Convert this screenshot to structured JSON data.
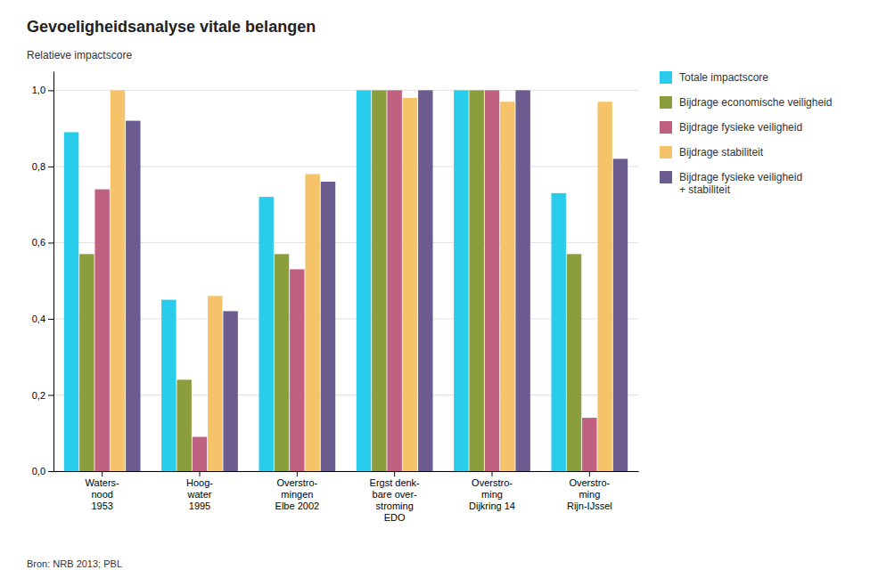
{
  "chart_data": {
    "type": "bar",
    "title": "Gevoeligheidsanalyse vitale belangen",
    "ylabel": "Relatieve impactscore",
    "annotations": [
      "Bron: NRB 2013; PBL"
    ],
    "categories": [
      "Waters-\nnood\n1953",
      "Hoog-\nwater\n1995",
      "Overstro-\nmingen\nElbe 2002",
      "Ergst denk-\nbare over-\nstroming\nEDO",
      "Overstro-\nming\nDijkring 14",
      "Overstro-\nming\nRijn-IJssel"
    ],
    "series": [
      {
        "name": "Totale impactscore",
        "color": "#29CCEA",
        "values": [
          0.89,
          0.45,
          0.72,
          1.0,
          1.0,
          0.73
        ]
      },
      {
        "name": "Bijdrage economische veiligheid",
        "color": "#8B9E3E",
        "values": [
          0.57,
          0.24,
          0.57,
          1.0,
          1.0,
          0.57
        ]
      },
      {
        "name": "Bijdrage fysieke veiligheid",
        "color": "#C06080",
        "values": [
          0.74,
          0.09,
          0.53,
          1.0,
          1.0,
          0.14
        ]
      },
      {
        "name": "Bijdrage stabiliteit",
        "color": "#F5C46A",
        "values": [
          1.0,
          0.46,
          0.78,
          0.98,
          0.97,
          0.97
        ]
      },
      {
        "name": "Bijdrage fysieke veiligheid\n+ stabiliteit",
        "color": "#6B5B8E",
        "values": [
          0.92,
          0.42,
          0.76,
          1.0,
          1.0,
          0.82
        ]
      }
    ],
    "ylim": [
      0,
      1.05
    ],
    "yticks": [
      {
        "value": 0.0,
        "label": "0,0"
      },
      {
        "value": 0.2,
        "label": "0,2"
      },
      {
        "value": 0.4,
        "label": "0,4"
      },
      {
        "value": 0.6,
        "label": "0,6"
      },
      {
        "value": 0.8,
        "label": "0,8"
      },
      {
        "value": 1.0,
        "label": "1,0"
      }
    ],
    "grid": true,
    "legend": "right"
  }
}
